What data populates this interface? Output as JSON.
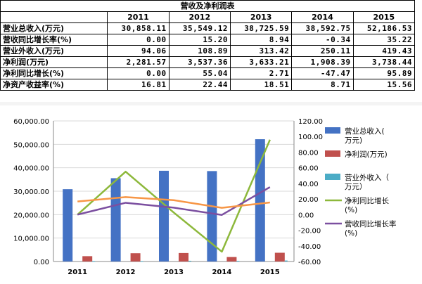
{
  "table": {
    "title": "营收及净利润表",
    "years": [
      "2011",
      "2012",
      "2013",
      "2014",
      "2015"
    ],
    "rows": [
      {
        "label": "营业总收入(万元)",
        "values": [
          "30,858.11",
          "35,549.12",
          "38,725.59",
          "38,592.75",
          "52,186.53"
        ]
      },
      {
        "label": "营收同比增长率(%)",
        "values": [
          "0.00",
          "15.20",
          "8.94",
          "-0.34",
          "35.22"
        ]
      },
      {
        "label": "营业外收入(万元)",
        "values": [
          "94.06",
          "108.89",
          "313.42",
          "250.11",
          "419.43"
        ]
      },
      {
        "label": "净利润(万元)",
        "values": [
          "2,281.57",
          "3,537.36",
          "3,633.21",
          "1,908.39",
          "3,738.44"
        ]
      },
      {
        "label": "净利同比增长(%)",
        "values": [
          "0.00",
          "55.04",
          "2.71",
          "-47.47",
          "95.89"
        ]
      },
      {
        "label": "净资产收益率(%)",
        "values": [
          "16.81",
          "22.44",
          "18.51",
          "8.71",
          "15.56"
        ]
      }
    ]
  },
  "chart_data": {
    "type": "bar",
    "categories": [
      "2011",
      "2012",
      "2013",
      "2014",
      "2015"
    ],
    "left_axis": {
      "ylim": [
        0,
        60000
      ],
      "ticks": [
        0,
        10000,
        20000,
        30000,
        40000,
        50000,
        60000
      ],
      "tick_labels": [
        "0.00",
        "10,000.00",
        "20,000.00",
        "30,000.00",
        "40,000.00",
        "50,000.00",
        "60,000.00"
      ]
    },
    "right_axis": {
      "ylim": [
        -60,
        120
      ],
      "ticks": [
        -60,
        -40,
        -20,
        0,
        20,
        40,
        60,
        80,
        100,
        120
      ],
      "tick_labels": [
        "-60.00",
        "-40.00",
        "-20.00",
        "0.00",
        "20.00",
        "40.00",
        "60.00",
        "80.00",
        "100.00",
        "120.00"
      ]
    },
    "grid": true,
    "legend_position": "right",
    "series": [
      {
        "name": "营业总收入(万元)",
        "kind": "bar",
        "axis": "left",
        "color": "#4472C4",
        "values": [
          30858.11,
          35549.12,
          38725.59,
          38592.75,
          52186.53
        ]
      },
      {
        "name": "净利润(万元)",
        "kind": "bar",
        "axis": "left",
        "color": "#C0504D",
        "values": [
          2281.57,
          3537.36,
          3633.21,
          1908.39,
          3738.44
        ]
      },
      {
        "name": "营业外收入（万元）",
        "kind": "bar",
        "axis": "left",
        "color": "#4BACC6",
        "values": [
          94.06,
          108.89,
          313.42,
          250.11,
          419.43
        ]
      },
      {
        "name": "净利同比增长(%)",
        "kind": "line",
        "axis": "right",
        "color": "#8DB83B",
        "values": [
          0.0,
          55.04,
          2.71,
          -47.47,
          95.89
        ]
      },
      {
        "name": "营收同比增长率(%)",
        "kind": "line",
        "axis": "right",
        "color": "#7B4FA0",
        "values": [
          0.0,
          15.2,
          8.94,
          -0.34,
          35.22
        ]
      },
      {
        "name": "",
        "kind": "line",
        "axis": "right",
        "color": "#F79646",
        "values": [
          16.81,
          22.44,
          18.51,
          8.71,
          15.56
        ]
      }
    ]
  }
}
